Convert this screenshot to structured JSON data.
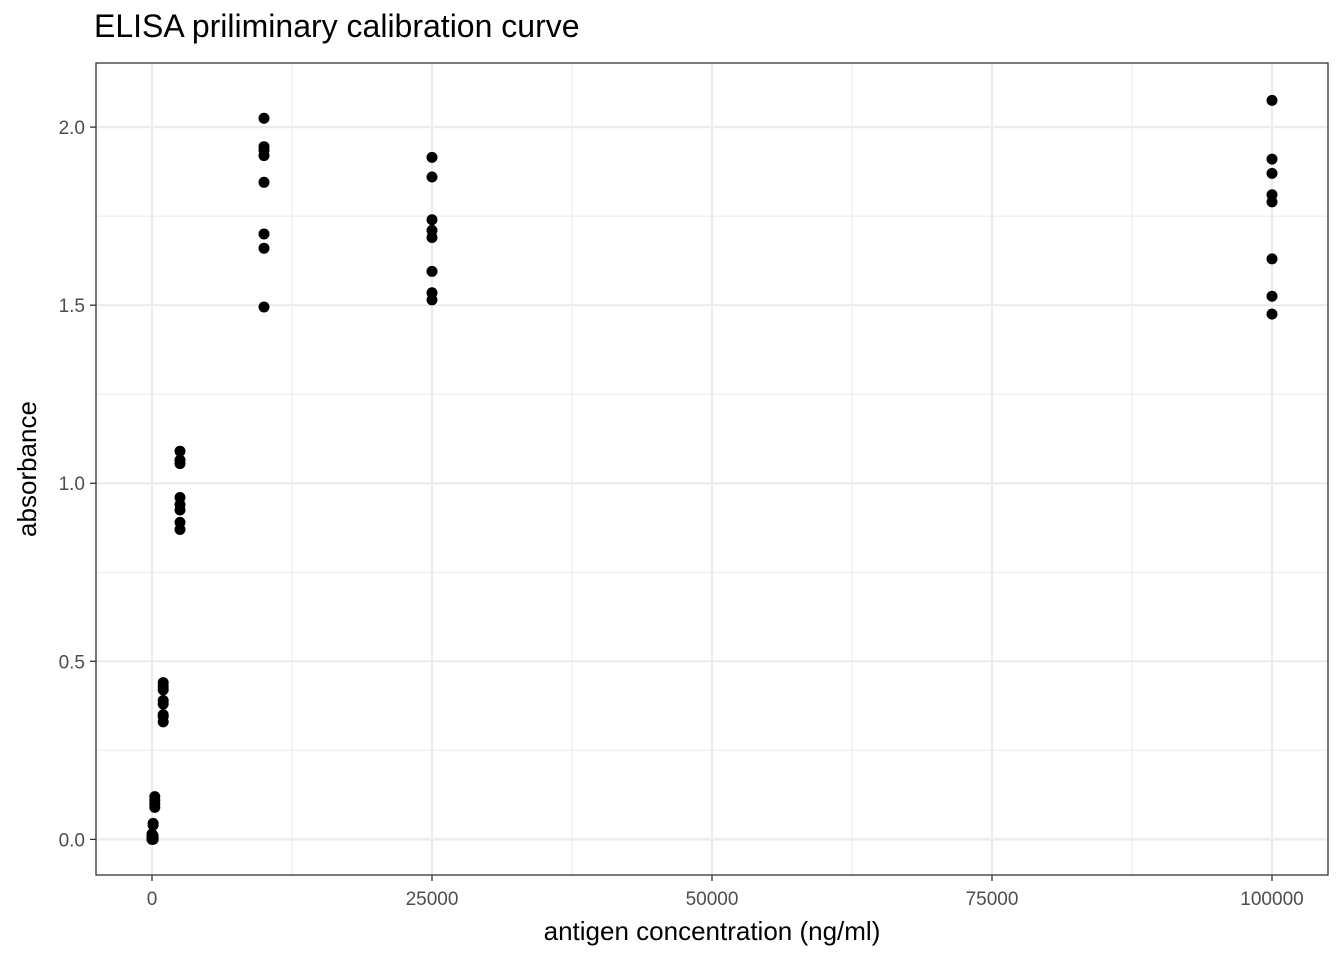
{
  "chart_data": {
    "type": "scatter",
    "title": "ELISA priliminary calibration curve",
    "xlabel": "antigen concentration (ng/ml)",
    "ylabel": "absorbance",
    "xlim": [
      -5000,
      105000
    ],
    "ylim": [
      -0.1,
      2.18
    ],
    "x_ticks": [
      0,
      25000,
      50000,
      75000,
      100000
    ],
    "x_tick_labels": [
      "0",
      "25000",
      "50000",
      "75000",
      "100000"
    ],
    "y_ticks": [
      0.0,
      0.5,
      1.0,
      1.5,
      2.0
    ],
    "y_tick_labels": [
      "0.0",
      "0.5",
      "1.0",
      "1.5",
      "2.0"
    ],
    "grid": true,
    "point_color": "#000000",
    "points": [
      {
        "x": 0,
        "y": 0.0
      },
      {
        "x": 0,
        "y": 0.005
      },
      {
        "x": 0,
        "y": 0.01
      },
      {
        "x": 0,
        "y": 0.015
      },
      {
        "x": 100,
        "y": 0.0
      },
      {
        "x": 100,
        "y": 0.005
      },
      {
        "x": 100,
        "y": 0.01
      },
      {
        "x": 100,
        "y": 0.04
      },
      {
        "x": 100,
        "y": 0.045
      },
      {
        "x": 250,
        "y": 0.09
      },
      {
        "x": 250,
        "y": 0.1
      },
      {
        "x": 250,
        "y": 0.11
      },
      {
        "x": 250,
        "y": 0.12
      },
      {
        "x": 1000,
        "y": 0.33
      },
      {
        "x": 1000,
        "y": 0.345
      },
      {
        "x": 1000,
        "y": 0.35
      },
      {
        "x": 1000,
        "y": 0.38
      },
      {
        "x": 1000,
        "y": 0.39
      },
      {
        "x": 1000,
        "y": 0.42
      },
      {
        "x": 1000,
        "y": 0.43
      },
      {
        "x": 1000,
        "y": 0.44
      },
      {
        "x": 2500,
        "y": 0.87
      },
      {
        "x": 2500,
        "y": 0.89
      },
      {
        "x": 2500,
        "y": 0.925
      },
      {
        "x": 2500,
        "y": 0.94
      },
      {
        "x": 2500,
        "y": 0.96
      },
      {
        "x": 2500,
        "y": 1.055
      },
      {
        "x": 2500,
        "y": 1.065
      },
      {
        "x": 2500,
        "y": 1.09
      },
      {
        "x": 10000,
        "y": 1.495
      },
      {
        "x": 10000,
        "y": 1.66
      },
      {
        "x": 10000,
        "y": 1.7
      },
      {
        "x": 10000,
        "y": 1.845
      },
      {
        "x": 10000,
        "y": 1.92
      },
      {
        "x": 10000,
        "y": 1.935
      },
      {
        "x": 10000,
        "y": 1.945
      },
      {
        "x": 10000,
        "y": 2.025
      },
      {
        "x": 25000,
        "y": 1.515
      },
      {
        "x": 25000,
        "y": 1.535
      },
      {
        "x": 25000,
        "y": 1.595
      },
      {
        "x": 25000,
        "y": 1.69
      },
      {
        "x": 25000,
        "y": 1.71
      },
      {
        "x": 25000,
        "y": 1.74
      },
      {
        "x": 25000,
        "y": 1.86
      },
      {
        "x": 25000,
        "y": 1.915
      },
      {
        "x": 100000,
        "y": 1.475
      },
      {
        "x": 100000,
        "y": 1.525
      },
      {
        "x": 100000,
        "y": 1.63
      },
      {
        "x": 100000,
        "y": 1.79
      },
      {
        "x": 100000,
        "y": 1.81
      },
      {
        "x": 100000,
        "y": 1.87
      },
      {
        "x": 100000,
        "y": 1.91
      },
      {
        "x": 100000,
        "y": 2.075
      }
    ]
  }
}
